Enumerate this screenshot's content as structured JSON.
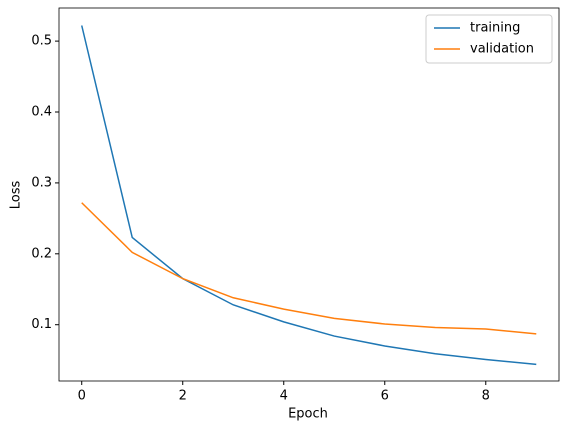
{
  "chart_data": {
    "type": "line",
    "x_label": "Epoch",
    "y_label": "Loss",
    "x": [
      0,
      1,
      2,
      3,
      4,
      5,
      6,
      7,
      8,
      9
    ],
    "series": [
      {
        "name": "training",
        "color": "#1f77b4",
        "values": [
          0.522,
          0.223,
          0.165,
          0.128,
          0.104,
          0.084,
          0.07,
          0.059,
          0.051,
          0.044
        ]
      },
      {
        "name": "validation",
        "color": "#ff7f0e",
        "values": [
          0.272,
          0.202,
          0.165,
          0.138,
          0.122,
          0.109,
          0.101,
          0.096,
          0.094,
          0.087
        ]
      }
    ],
    "xlim": [
      -0.45,
      9.45
    ],
    "xticks": [
      0,
      2,
      4,
      6,
      8
    ],
    "ylim": [
      0.0206,
      0.5467
    ],
    "yticks": [
      0.1,
      0.2,
      0.3,
      0.4,
      0.5
    ],
    "legend": "upper right",
    "grid": false
  }
}
